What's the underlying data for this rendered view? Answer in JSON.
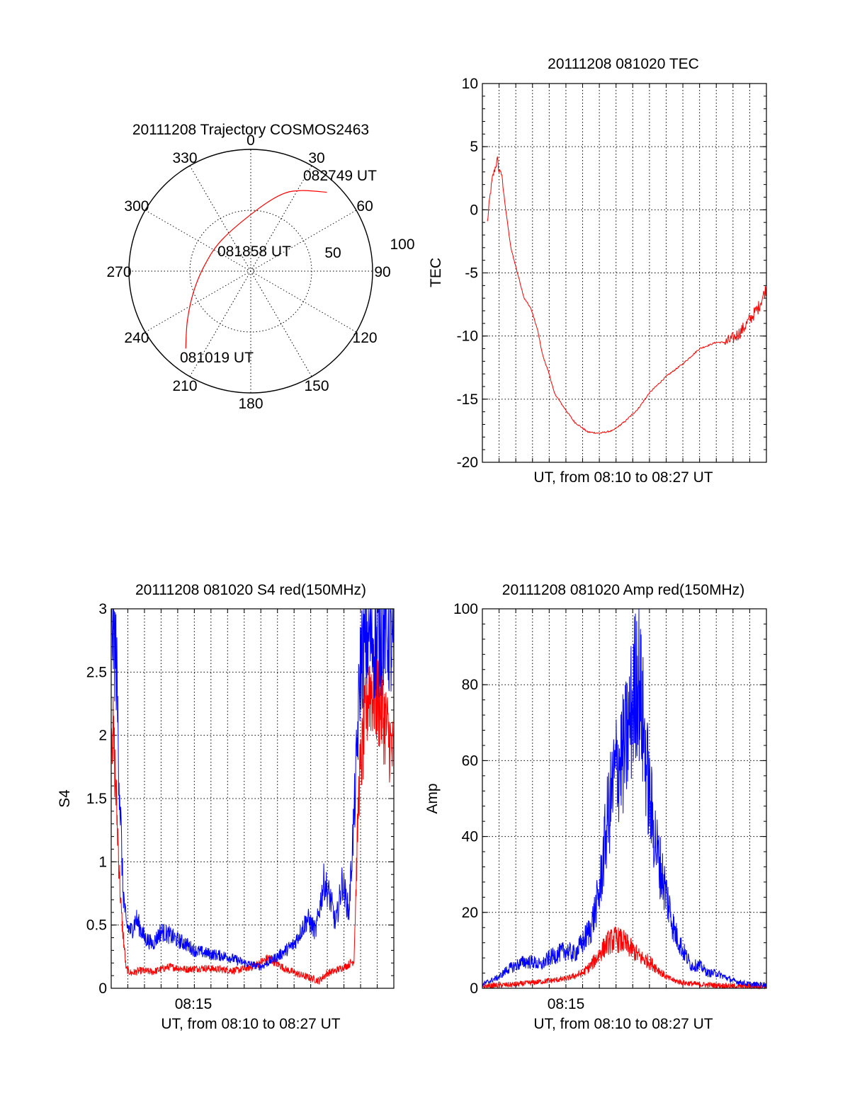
{
  "chart_data": [
    {
      "type": "polar",
      "title": "20111208 Trajectory COSMOS2463",
      "azimuth_labels": [
        "0",
        "30",
        "60",
        "90",
        "120",
        "150",
        "180",
        "210",
        "240",
        "270",
        "300",
        "330"
      ],
      "radial_labels": [
        "50",
        "100"
      ],
      "rlim": [
        0,
        100
      ],
      "grid": true,
      "annotations": [
        "082749 UT",
        "081858 UT",
        "081019 UT"
      ],
      "series": [
        {
          "color": "#ff0000",
          "points": [
            {
              "az": 220,
              "r": 83,
              "time": "081019 UT"
            },
            {
              "az": 232,
              "r": 66
            },
            {
              "az": 250,
              "r": 50
            },
            {
              "az": 278,
              "r": 38
            },
            {
              "az": 318,
              "r": 35
            },
            {
              "az": 5,
              "r": 50,
              "time": "081858 UT"
            },
            {
              "az": 22,
              "r": 68
            },
            {
              "az": 32,
              "r": 78
            },
            {
              "az": 44,
              "r": 90,
              "time": "082749 UT"
            }
          ]
        }
      ]
    },
    {
      "type": "line",
      "title": "20111208 081020 TEC",
      "xlabel": "UT, from 08:10 to 08:27 UT",
      "ylabel": "TEC",
      "ylim": [
        -20,
        10
      ],
      "yticks": [
        "10",
        "5",
        "0",
        "-5",
        "-10",
        "-15",
        "-20"
      ],
      "xlim_minutes": [
        0,
        17
      ],
      "grid": true,
      "series": [
        {
          "color": "#ff0000",
          "x": [
            0.3,
            0.45,
            0.6,
            0.8,
            0.9,
            1.0,
            1.1,
            1.2,
            1.4,
            1.7,
            2.1,
            2.5,
            2.9,
            3.3,
            3.6,
            4.0,
            4.3,
            4.8,
            5.5,
            6.3,
            7.0,
            7.8,
            8.5,
            9.3,
            10.0,
            11.0,
            12.0,
            13.0,
            14.0,
            14.6,
            15.0,
            15.5,
            16.0,
            16.5,
            17.0
          ],
          "y": [
            -1,
            1,
            2.5,
            3.5,
            4,
            3,
            3.2,
            2.2,
            0,
            -3,
            -5,
            -7,
            -7.8,
            -9.5,
            -11.5,
            -13,
            -14.5,
            -15.5,
            -16.8,
            -17.6,
            -17.7,
            -17.5,
            -16.8,
            -15.8,
            -14.5,
            -13.2,
            -12.2,
            -11.0,
            -10.5,
            -10.5,
            -10.2,
            -9.6,
            -8.7,
            -7.8,
            -6.2
          ]
        }
      ]
    },
    {
      "type": "line",
      "title": "20111208 081020 S4 red(150MHz)",
      "xlabel": "UT, from 08:10 to 08:27 UT",
      "ylabel": "S4",
      "ylim": [
        0,
        3
      ],
      "yticks": [
        "0",
        "0.5",
        "1",
        "1.5",
        "2",
        "2.5",
        "3"
      ],
      "xticks": [
        "08:15"
      ],
      "xlim_minutes": [
        0,
        17
      ],
      "grid": true,
      "series": [
        {
          "color": "#ff0000",
          "x": [
            0.0,
            0.2,
            0.4,
            0.6,
            0.9,
            1.2,
            1.8,
            2.5,
            3.5,
            4.5,
            5.5,
            6.5,
            7.5,
            8.5,
            9.5,
            10.5,
            11.5,
            12.5,
            13.0,
            13.5,
            14.2,
            14.6,
            14.9,
            15.5,
            16.0,
            16.5,
            17.0
          ],
          "y": [
            2.2,
            1.8,
            1.2,
            0.6,
            0.15,
            0.12,
            0.14,
            0.13,
            0.17,
            0.15,
            0.16,
            0.15,
            0.14,
            0.17,
            0.24,
            0.15,
            0.1,
            0.06,
            0.12,
            0.14,
            0.18,
            0.22,
            1.6,
            2.4,
            2.3,
            2.1,
            1.8
          ]
        },
        {
          "color": "#0000ff",
          "x": [
            0.0,
            0.3,
            0.5,
            0.7,
            0.9,
            1.2,
            1.5,
            2.0,
            2.5,
            3.0,
            3.5,
            4.0,
            4.5,
            5.0,
            6.0,
            7.0,
            8.0,
            9.0,
            10.0,
            11.0,
            11.8,
            12.3,
            12.8,
            13.2,
            13.5,
            13.9,
            14.3,
            14.7,
            15.0,
            15.5,
            16.0,
            16.5,
            17.0
          ],
          "y": [
            3.0,
            2.6,
            1.6,
            0.8,
            0.5,
            0.45,
            0.55,
            0.4,
            0.35,
            0.45,
            0.42,
            0.38,
            0.35,
            0.3,
            0.27,
            0.25,
            0.2,
            0.17,
            0.25,
            0.35,
            0.55,
            0.45,
            0.85,
            0.7,
            0.5,
            0.85,
            0.6,
            1.6,
            2.6,
            2.8,
            2.7,
            2.9,
            2.6
          ]
        }
      ]
    },
    {
      "type": "line",
      "title": "20111208 081020 Amp red(150MHz)",
      "xlabel": "UT, from 08:10 to 08:27 UT",
      "ylabel": "Amp",
      "ylim": [
        0,
        100
      ],
      "yticks": [
        "0",
        "20",
        "40",
        "60",
        "80",
        "100"
      ],
      "xticks": [
        "08:15"
      ],
      "xlim_minutes": [
        0,
        17
      ],
      "grid": true,
      "series": [
        {
          "color": "#ff0000",
          "x": [
            0,
            1,
            2,
            3,
            4,
            5,
            6,
            6.5,
            7,
            7.5,
            8,
            8.5,
            9,
            9.5,
            10,
            10.5,
            11,
            11.5,
            12,
            13,
            14,
            15,
            16,
            17
          ],
          "y": [
            0.5,
            0.8,
            1,
            1.5,
            2,
            2.5,
            4,
            6,
            9,
            12,
            13,
            12,
            10,
            8,
            7,
            5,
            3,
            2,
            1.5,
            1,
            0.8,
            0.6,
            0.5,
            0.5
          ]
        },
        {
          "color": "#0000ff",
          "x": [
            0,
            0.5,
            1,
            1.5,
            2,
            2.5,
            3,
            3.5,
            4,
            4.5,
            5,
            5.5,
            6,
            6.5,
            7,
            7.5,
            8,
            8.5,
            9,
            9.3,
            9.6,
            10,
            10.5,
            11,
            11.5,
            12,
            12.5,
            13,
            13.5,
            14,
            14.5,
            15,
            15.5,
            16,
            16.5,
            17
          ],
          "y": [
            1,
            2,
            3,
            5,
            6,
            7,
            7,
            6,
            8,
            9,
            10,
            9,
            12,
            16,
            25,
            45,
            58,
            62,
            75,
            85,
            70,
            50,
            35,
            25,
            15,
            10,
            6,
            6,
            4,
            4,
            3,
            2,
            1.5,
            1,
            1,
            1
          ]
        }
      ]
    }
  ]
}
